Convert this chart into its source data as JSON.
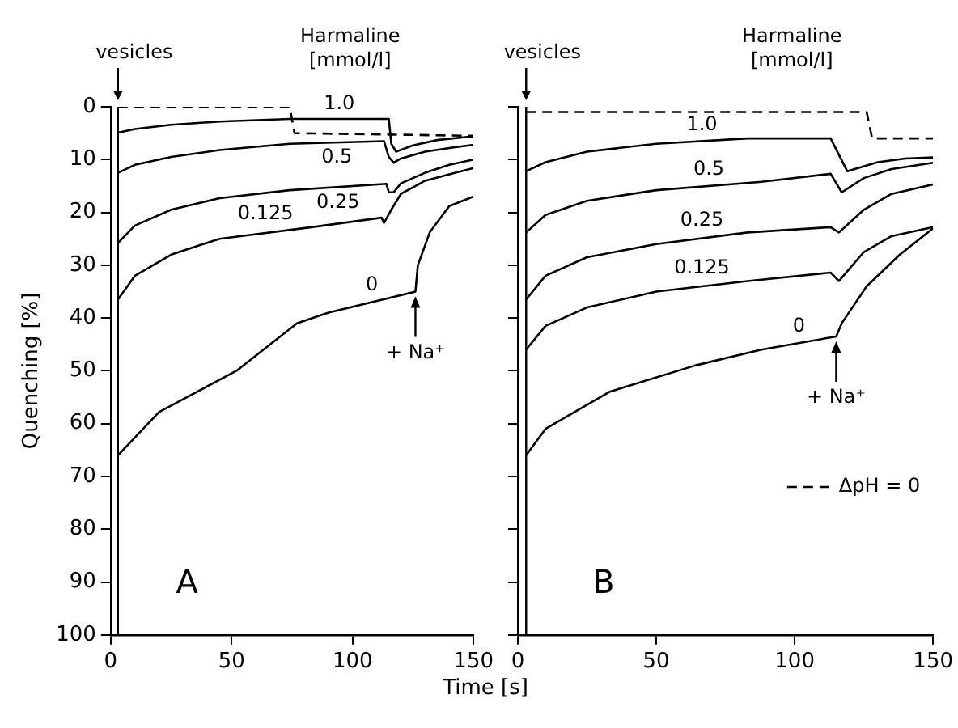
{
  "chart_data": [
    {
      "type": "line",
      "ylabel": "Quenching [%]",
      "xlabel": "Time [s]",
      "legend_title": "Harmaline [mmol/l]",
      "xlim": [
        0,
        150
      ],
      "xticks": [
        0,
        50,
        100,
        150
      ],
      "ylim": [
        100,
        0
      ],
      "yticks": [
        0,
        10,
        20,
        30,
        40,
        50,
        60,
        70,
        80,
        90,
        100
      ],
      "marker": "none",
      "legend": false,
      "ref_lines": [
        {
          "axis": "x",
          "value": 3
        }
      ],
      "annotations": [
        {
          "text": "vesicles",
          "x": 3,
          "y": 0
        },
        {
          "text": "+ Na⁺",
          "x": 126,
          "y": 35
        },
        "A"
      ],
      "series": [
        {
          "color": "#000000",
          "line_style": "dashed",
          "x": [
            3,
            74,
            76,
            150
          ],
          "values": [
            0,
            0,
            5,
            5.5
          ]
        },
        {
          "name": "1.0",
          "color": "#000000",
          "line_style": "solid",
          "x": [
            3,
            10,
            25,
            45,
            74,
            115,
            116,
            118,
            125,
            135,
            150
          ],
          "values": [
            4.9,
            4.2,
            3.4,
            2.8,
            2.3,
            2.3,
            7,
            8.5,
            7.3,
            6.3,
            5.6
          ]
        },
        {
          "name": "0.5",
          "color": "#000000",
          "line_style": "solid",
          "x": [
            3,
            10,
            25,
            45,
            74,
            113,
            115,
            117,
            120,
            130,
            140,
            150
          ],
          "values": [
            12.5,
            11,
            9.5,
            8.2,
            7,
            6.5,
            9.5,
            10.6,
            9.8,
            8.5,
            7.8,
            7.2
          ]
        },
        {
          "name": "0.25",
          "color": "#000000",
          "line_style": "solid",
          "x": [
            3,
            10,
            25,
            45,
            74,
            114,
            115,
            117,
            120,
            130,
            140,
            150
          ],
          "values": [
            25.8,
            22.5,
            19.5,
            17.3,
            15.8,
            14.6,
            16.2,
            16.2,
            14.5,
            12.5,
            11,
            10
          ]
        },
        {
          "name": "0.125",
          "color": "#000000",
          "line_style": "solid",
          "x": [
            3,
            10,
            25,
            45,
            83,
            112,
            113,
            116,
            120,
            130,
            140,
            150
          ],
          "values": [
            36.5,
            32,
            28,
            25,
            22.8,
            21,
            22,
            19.5,
            16.5,
            14,
            12.8,
            11.6
          ]
        },
        {
          "name": "0",
          "color": "#000000",
          "line_style": "solid",
          "x": [
            3,
            20,
            52,
            77,
            90,
            126,
            127,
            132,
            140,
            150
          ],
          "values": [
            66,
            57.8,
            50,
            41,
            39,
            35,
            30,
            23.7,
            18.8,
            17
          ]
        }
      ]
    },
    {
      "type": "line",
      "legend_title": "Harmaline [mmol/l]",
      "xlim": [
        0,
        150
      ],
      "xticks": [
        0,
        50,
        100,
        150
      ],
      "ylim": [
        100,
        0
      ],
      "yticks": [
        0,
        10,
        20,
        30,
        40,
        50,
        60,
        70,
        80,
        90,
        100
      ],
      "tick_labels": "x",
      "marker": "none",
      "legend": "bottom right",
      "ref_lines": [
        {
          "axis": "x",
          "value": 3
        }
      ],
      "annotations": [
        {
          "text": "vesicles",
          "x": 3,
          "y": 0
        },
        {
          "text": "+ Na⁺",
          "x": 115,
          "y": 43.5
        },
        "B"
      ],
      "series": [
        {
          "name": "ΔpH = 0",
          "color": "#000000",
          "line_style": "dashed",
          "x": [
            3,
            126,
            128,
            150
          ],
          "values": [
            1,
            1,
            6,
            6
          ]
        },
        {
          "name": "1.0",
          "color": "#000000",
          "line_style": "solid",
          "x": [
            3,
            10,
            25,
            50,
            83,
            113,
            119,
            130,
            140,
            150
          ],
          "values": [
            12.2,
            10.5,
            8.5,
            7,
            6,
            6,
            12.2,
            10.5,
            9.8,
            9.6
          ]
        },
        {
          "name": "0.5",
          "color": "#000000",
          "line_style": "solid",
          "x": [
            3,
            10,
            25,
            50,
            88,
            113,
            117,
            125,
            135,
            150
          ],
          "values": [
            23.8,
            20.5,
            17.8,
            15.8,
            14.2,
            12.7,
            16.2,
            13.5,
            11.8,
            10.6
          ]
        },
        {
          "name": "0.25",
          "color": "#000000",
          "line_style": "solid",
          "x": [
            3,
            10,
            25,
            50,
            83,
            113,
            116,
            125,
            135,
            150
          ],
          "values": [
            36.5,
            32,
            28.5,
            26,
            23.8,
            22.8,
            23.8,
            19.5,
            16.5,
            14.7
          ]
        },
        {
          "name": "0.125",
          "color": "#000000",
          "line_style": "solid",
          "x": [
            3,
            10,
            25,
            50,
            83,
            113,
            116,
            125,
            135,
            150
          ],
          "values": [
            46,
            41.5,
            38,
            35,
            33,
            31.4,
            33,
            27.5,
            24.5,
            22.8
          ]
        },
        {
          "name": "0",
          "color": "#000000",
          "line_style": "solid",
          "x": [
            3,
            10,
            33,
            64,
            88,
            115,
            117,
            126,
            138,
            150
          ],
          "values": [
            66,
            61,
            54,
            49,
            46,
            43.5,
            41,
            34,
            28,
            23
          ]
        }
      ]
    }
  ]
}
